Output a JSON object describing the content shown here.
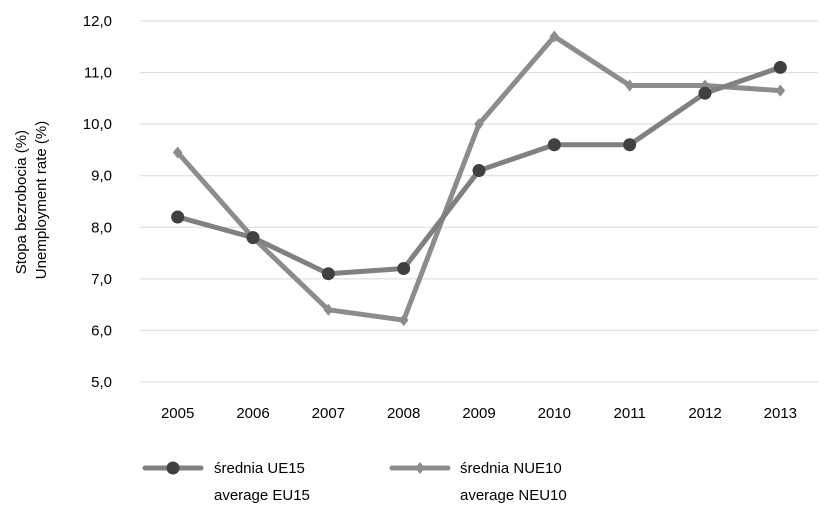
{
  "chart_data": {
    "type": "line",
    "title": "",
    "ylabel": [
      "Stopa bezrobocia (%)",
      "Unemployment rate (%)"
    ],
    "xlabel": "",
    "ylim": [
      5.0,
      12.0
    ],
    "yticks": [
      "5,0",
      "6,0",
      "7,0",
      "8,0",
      "9,0",
      "10,0",
      "11,0",
      "12,0"
    ],
    "categories": [
      "2005",
      "2006",
      "2007",
      "2008",
      "2009",
      "2010",
      "2011",
      "2012",
      "2013"
    ],
    "grid": "horizontal",
    "legend_position": "bottom",
    "series": [
      {
        "name": [
          "średnia UE15",
          "average EU15"
        ],
        "marker": "circle",
        "color": "#808080",
        "marker_color": "#404040",
        "values": [
          8.2,
          7.8,
          7.1,
          7.2,
          9.1,
          9.6,
          9.6,
          10.6,
          11.1
        ]
      },
      {
        "name": [
          "średnia NUE10",
          "average NEU10"
        ],
        "marker": "diamond",
        "color": "#8c8c8c",
        "marker_color": "#8c8c8c",
        "values": [
          9.45,
          7.8,
          6.4,
          6.2,
          10.0,
          11.7,
          10.75,
          10.75,
          10.65
        ]
      }
    ]
  }
}
